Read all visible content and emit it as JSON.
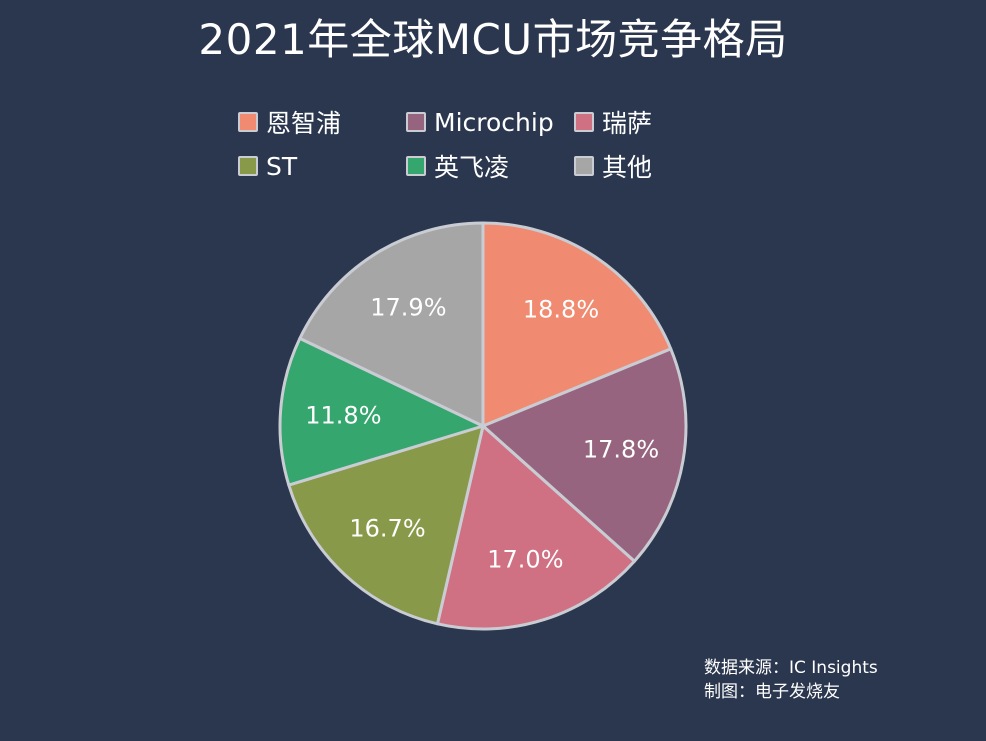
{
  "chart_data": {
    "type": "pie",
    "title": "2021年全球MCU市场竞争格局",
    "slices": [
      {
        "name": "恩智浦",
        "value": 18.8,
        "label": "18.8%",
        "color": "#f08a70"
      },
      {
        "name": "Microchip",
        "value": 17.8,
        "label": "17.8%",
        "color": "#97647f"
      },
      {
        "name": "瑞萨",
        "value": 17.0,
        "label": "17.0%",
        "color": "#d07083"
      },
      {
        "name": "ST",
        "value": 16.7,
        "label": "16.7%",
        "color": "#889a4a"
      },
      {
        "name": "英飞凌",
        "value": 11.8,
        "label": "11.8%",
        "color": "#34a66e"
      },
      {
        "name": "其他",
        "value": 17.9,
        "label": "17.9%",
        "color": "#a6a6a6"
      }
    ],
    "legend_position": "top",
    "start_angle": "12 o'clock",
    "direction": "clockwise"
  },
  "source": {
    "line1": "数据来源：IC Insights",
    "line2": "制图：电子发烧友"
  },
  "colors": {
    "background": "#2b374f",
    "slice_border": "#c9ccd3"
  }
}
